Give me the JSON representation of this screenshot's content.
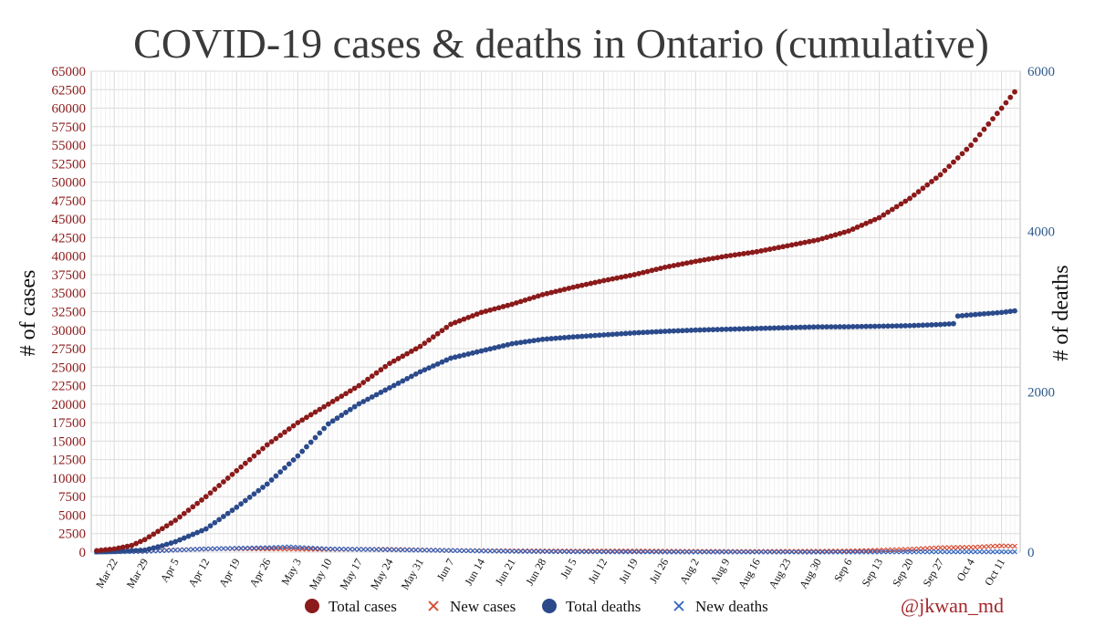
{
  "chart_data": {
    "type": "scatter",
    "title": "COVID-19 cases & deaths in Ontario (cumulative)",
    "ylabel": "# of cases",
    "y2label": "# of deaths",
    "credit": "@jkwan_md",
    "x_start": "2020-03-18",
    "x_end": "2020-10-14",
    "ylim": [
      0,
      65000
    ],
    "y2lim": [
      0,
      6000
    ],
    "yticks": [
      "0",
      "2500",
      "5000",
      "7500",
      "10000",
      "12500",
      "15000",
      "17500",
      "20000",
      "22500",
      "25000",
      "27500",
      "30000",
      "32500",
      "35000",
      "37500",
      "40000",
      "42500",
      "45000",
      "47500",
      "50000",
      "52500",
      "55000",
      "57500",
      "60000",
      "62500",
      "65000"
    ],
    "y2ticks": [
      "0",
      "2000",
      "4000",
      "6000"
    ],
    "xticks": [
      {
        "date": "2020-03-22",
        "label": "Mar 22"
      },
      {
        "date": "2020-03-29",
        "label": "Mar 29"
      },
      {
        "date": "2020-04-05",
        "label": "Apr 5"
      },
      {
        "date": "2020-04-12",
        "label": "Apr 12"
      },
      {
        "date": "2020-04-19",
        "label": "Apr 19"
      },
      {
        "date": "2020-04-26",
        "label": "Apr 26"
      },
      {
        "date": "2020-05-03",
        "label": "May 3"
      },
      {
        "date": "2020-05-10",
        "label": "May 10"
      },
      {
        "date": "2020-05-17",
        "label": "May 17"
      },
      {
        "date": "2020-05-24",
        "label": "May 24"
      },
      {
        "date": "2020-05-31",
        "label": "May 31"
      },
      {
        "date": "2020-06-07",
        "label": "Jun 7"
      },
      {
        "date": "2020-06-14",
        "label": "Jun 14"
      },
      {
        "date": "2020-06-21",
        "label": "Jun 21"
      },
      {
        "date": "2020-06-28",
        "label": "Jun 28"
      },
      {
        "date": "2020-07-05",
        "label": "Jul 5"
      },
      {
        "date": "2020-07-12",
        "label": "Jul 12"
      },
      {
        "date": "2020-07-19",
        "label": "Jul 19"
      },
      {
        "date": "2020-07-26",
        "label": "Jul 26"
      },
      {
        "date": "2020-08-02",
        "label": "Aug 2"
      },
      {
        "date": "2020-08-09",
        "label": "Aug 9"
      },
      {
        "date": "2020-08-16",
        "label": "Aug 16"
      },
      {
        "date": "2020-08-23",
        "label": "Aug 23"
      },
      {
        "date": "2020-08-30",
        "label": "Aug 30"
      },
      {
        "date": "2020-09-06",
        "label": "Sep 6"
      },
      {
        "date": "2020-09-13",
        "label": "Sep 13"
      },
      {
        "date": "2020-09-20",
        "label": "Sep 20"
      },
      {
        "date": "2020-09-27",
        "label": "Sep 27"
      },
      {
        "date": "2020-10-04",
        "label": "Oct 4"
      },
      {
        "date": "2020-10-11",
        "label": "Oct 11"
      }
    ],
    "grid": true,
    "legend_position": "bottom",
    "series": [
      {
        "name": "Total cases",
        "marker": "dot",
        "color": "#8b1a1a",
        "axis": "left",
        "anchors": [
          [
            "2020-03-18",
            200
          ],
          [
            "2020-03-22",
            430
          ],
          [
            "2020-03-26",
            900
          ],
          [
            "2020-03-29",
            1700
          ],
          [
            "2020-04-01",
            2800
          ],
          [
            "2020-04-05",
            4300
          ],
          [
            "2020-04-12",
            7500
          ],
          [
            "2020-04-19",
            11000
          ],
          [
            "2020-04-26",
            14500
          ],
          [
            "2020-05-03",
            17500
          ],
          [
            "2020-05-10",
            20000
          ],
          [
            "2020-05-17",
            22500
          ],
          [
            "2020-05-24",
            25500
          ],
          [
            "2020-05-31",
            27800
          ],
          [
            "2020-06-07",
            30800
          ],
          [
            "2020-06-14",
            32400
          ],
          [
            "2020-06-21",
            33500
          ],
          [
            "2020-06-28",
            34800
          ],
          [
            "2020-07-05",
            35800
          ],
          [
            "2020-07-12",
            36700
          ],
          [
            "2020-07-19",
            37500
          ],
          [
            "2020-07-26",
            38500
          ],
          [
            "2020-08-02",
            39300
          ],
          [
            "2020-08-09",
            40000
          ],
          [
            "2020-08-16",
            40600
          ],
          [
            "2020-08-23",
            41400
          ],
          [
            "2020-08-30",
            42200
          ],
          [
            "2020-09-06",
            43400
          ],
          [
            "2020-09-13",
            45200
          ],
          [
            "2020-09-20",
            47800
          ],
          [
            "2020-09-27",
            51000
          ],
          [
            "2020-10-04",
            55000
          ],
          [
            "2020-10-11",
            60000
          ],
          [
            "2020-10-14",
            62200
          ]
        ]
      },
      {
        "name": "New cases",
        "marker": "x",
        "color": "#d9452b",
        "axis": "left",
        "anchors": [
          [
            "2020-03-18",
            40
          ],
          [
            "2020-03-29",
            150
          ],
          [
            "2020-04-05",
            300
          ],
          [
            "2020-04-15",
            480
          ],
          [
            "2020-04-26",
            450
          ],
          [
            "2020-05-08",
            380
          ],
          [
            "2020-05-24",
            380
          ],
          [
            "2020-06-07",
            220
          ],
          [
            "2020-06-21",
            170
          ],
          [
            "2020-07-05",
            140
          ],
          [
            "2020-07-19",
            150
          ],
          [
            "2020-08-02",
            100
          ],
          [
            "2020-08-16",
            90
          ],
          [
            "2020-08-30",
            120
          ],
          [
            "2020-09-06",
            150
          ],
          [
            "2020-09-13",
            250
          ],
          [
            "2020-09-20",
            380
          ],
          [
            "2020-09-27",
            600
          ],
          [
            "2020-10-04",
            650
          ],
          [
            "2020-10-11",
            850
          ],
          [
            "2020-10-14",
            800
          ]
        ]
      },
      {
        "name": "Total deaths",
        "marker": "dot",
        "color": "#2b4a8b",
        "axis": "right",
        "anchors": [
          [
            "2020-03-18",
            3
          ],
          [
            "2020-03-22",
            8
          ],
          [
            "2020-03-29",
            25
          ],
          [
            "2020-04-02",
            80
          ],
          [
            "2020-04-05",
            130
          ],
          [
            "2020-04-12",
            290
          ],
          [
            "2020-04-19",
            560
          ],
          [
            "2020-04-26",
            850
          ],
          [
            "2020-05-03",
            1200
          ],
          [
            "2020-05-10",
            1600
          ],
          [
            "2020-05-17",
            1850
          ],
          [
            "2020-05-24",
            2050
          ],
          [
            "2020-05-31",
            2250
          ],
          [
            "2020-06-07",
            2420
          ],
          [
            "2020-06-14",
            2510
          ],
          [
            "2020-06-21",
            2600
          ],
          [
            "2020-06-28",
            2655
          ],
          [
            "2020-07-05",
            2685
          ],
          [
            "2020-07-12",
            2710
          ],
          [
            "2020-07-19",
            2735
          ],
          [
            "2020-07-26",
            2755
          ],
          [
            "2020-08-02",
            2770
          ],
          [
            "2020-08-09",
            2780
          ],
          [
            "2020-08-16",
            2790
          ],
          [
            "2020-08-23",
            2800
          ],
          [
            "2020-08-30",
            2810
          ],
          [
            "2020-09-06",
            2812
          ],
          [
            "2020-09-13",
            2818
          ],
          [
            "2020-09-20",
            2825
          ],
          [
            "2020-09-27",
            2840
          ],
          [
            "2020-09-30",
            2850
          ],
          [
            "2020-10-01",
            2945
          ],
          [
            "2020-10-04",
            2960
          ],
          [
            "2020-10-11",
            2990
          ],
          [
            "2020-10-14",
            3010
          ]
        ]
      },
      {
        "name": "New deaths",
        "marker": "x",
        "color": "#2f63c0",
        "axis": "right",
        "anchors": [
          [
            "2020-03-18",
            1
          ],
          [
            "2020-03-29",
            8
          ],
          [
            "2020-04-05",
            25
          ],
          [
            "2020-04-12",
            40
          ],
          [
            "2020-04-19",
            48
          ],
          [
            "2020-04-26",
            55
          ],
          [
            "2020-05-01",
            65
          ],
          [
            "2020-05-10",
            40
          ],
          [
            "2020-05-24",
            30
          ],
          [
            "2020-06-07",
            20
          ],
          [
            "2020-06-21",
            10
          ],
          [
            "2020-07-05",
            5
          ],
          [
            "2020-07-19",
            3
          ],
          [
            "2020-08-02",
            2
          ],
          [
            "2020-08-30",
            1
          ],
          [
            "2020-09-27",
            4
          ],
          [
            "2020-10-11",
            4
          ],
          [
            "2020-10-14",
            4
          ]
        ]
      }
    ]
  }
}
